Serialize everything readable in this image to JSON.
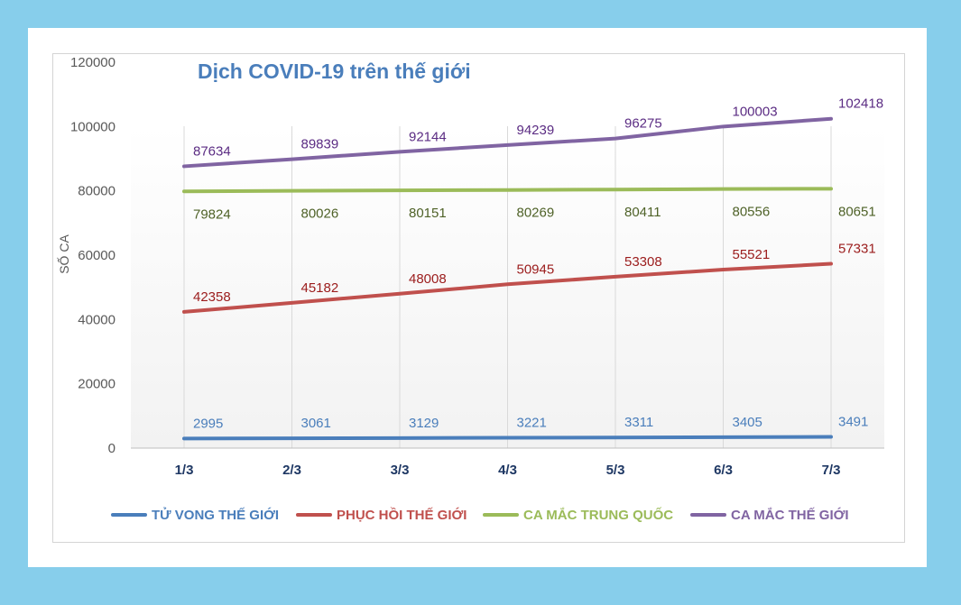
{
  "chart_data": {
    "type": "line",
    "title": "Dịch COVID-19 trên thế giới",
    "xlabel": "",
    "ylabel": "SỐ CA",
    "categories": [
      "1/3",
      "2/3",
      "3/3",
      "4/3",
      "5/3",
      "6/3",
      "7/3"
    ],
    "ylim": [
      0,
      120000
    ],
    "yticks": [
      "0",
      "20000",
      "40000",
      "60000",
      "80000",
      "100000",
      "120000"
    ],
    "grid": "vertical",
    "legend_position": "bottom",
    "series": [
      {
        "name": "TỬ VONG THẾ GIỚI",
        "color": "#4a7ebb",
        "label_color": "#4a7ebb",
        "label_pos": "above",
        "values": [
          2995,
          3061,
          3129,
          3221,
          3311,
          3405,
          3491
        ]
      },
      {
        "name": "PHỤC HỒI THẾ GIỚI",
        "color": "#c0504d",
        "label_color": "#9b1c1c",
        "label_pos": "above",
        "values": [
          42358,
          45182,
          48008,
          50945,
          53308,
          55521,
          57331
        ]
      },
      {
        "name": "CA MẮC TRUNG QUỐC",
        "color": "#9bbb59",
        "label_color": "#4f6228",
        "label_pos": "below",
        "values": [
          79824,
          80026,
          80151,
          80269,
          80411,
          80556,
          80651
        ]
      },
      {
        "name": "CA MẮC THẾ GIỚI",
        "color": "#8064a2",
        "label_color": "#5b2c83",
        "label_pos": "above",
        "values": [
          87634,
          89839,
          92144,
          94239,
          96275,
          100003,
          102418
        ]
      }
    ]
  }
}
